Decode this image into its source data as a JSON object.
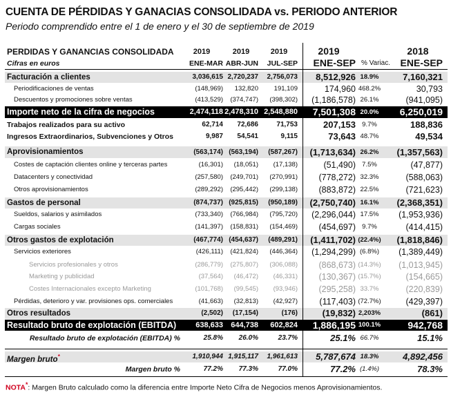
{
  "title": "CUENTA DE PÉRDIDAS Y GANACIAS CONSOLIDADA vs. PERIODO ANTERIOR",
  "subtitle": "Periodo comprendido entre el 1 de enero y el 30 de septiembre de 2019",
  "table_header": {
    "main": "PERDIDAS Y GANANCIAS CONSOLIDADA",
    "sub": "Cifras en euros",
    "col_year": [
      "2019",
      "2019",
      "2019",
      "2019",
      "",
      "2018"
    ],
    "col_period": [
      "ENE-MAR",
      "ABR-JUN",
      "JUL-SEP",
      "ENE-SEP",
      "% Variac.",
      "ENE-SEP"
    ]
  },
  "rows": [
    {
      "label": "Facturación a clientes",
      "v": [
        "3,036,615",
        "2,720,237",
        "2,756,073",
        "8,512,926",
        "18.9%",
        "7,160,321"
      ],
      "style": "shade",
      "bold": true
    },
    {
      "label": "Periodificaciones de ventas",
      "v": [
        "(148,969)",
        "132,820",
        "191,109",
        "174,960",
        "468.2%",
        "30,793"
      ],
      "style": "plain",
      "indent": 1
    },
    {
      "label": "Descuentos y promociones sobre ventas",
      "v": [
        "(413,529)",
        "(374,747)",
        "(398,302)",
        "(1,186,578)",
        "26.1%",
        "(941,095)"
      ],
      "style": "plain",
      "indent": 1
    },
    {
      "label": "Importe neto de la cifra de negocios",
      "v": [
        "2,474,118",
        "2,478,310",
        "2,548,880",
        "7,501,308",
        "20.0%",
        "6,250,019"
      ],
      "style": "dark",
      "bold": true
    },
    {
      "label": "Trabajos realizados para su activo",
      "v": [
        "62,714",
        "72,686",
        "71,753",
        "207,153",
        "9.7%",
        "188,836"
      ],
      "style": "plain",
      "bold": true
    },
    {
      "label": "Ingresos Extraordinarios, Subvenciones y Otros",
      "v": [
        "9,987",
        "54,541",
        "9,115",
        "73,643",
        "48.7%",
        "49,534"
      ],
      "style": "plain",
      "bold": true
    },
    {
      "label": "Aprovisionamientos",
      "v": [
        "(563,174)",
        "(563,194)",
        "(587,267)",
        "(1,713,634)",
        "26.2%",
        "(1,357,563)"
      ],
      "style": "shade",
      "bold": true
    },
    {
      "label": "Costes de captación clientes online y terceras partes",
      "v": [
        "(16,301)",
        "(18,051)",
        "(17,138)",
        "(51,490)",
        "7.5%",
        "(47,877)"
      ],
      "style": "plain",
      "indent": 1
    },
    {
      "label": "Datacenters y conectividad",
      "v": [
        "(257,580)",
        "(249,701)",
        "(270,991)",
        "(778,272)",
        "32.3%",
        "(588,063)"
      ],
      "style": "plain",
      "indent": 1
    },
    {
      "label": "Otros aprovisionamientos",
      "v": [
        "(289,292)",
        "(295,442)",
        "(299,138)",
        "(883,872)",
        "22.5%",
        "(721,623)"
      ],
      "style": "plain",
      "indent": 1
    },
    {
      "label": "Gastos de personal",
      "v": [
        "(874,737)",
        "(925,815)",
        "(950,189)",
        "(2,750,740)",
        "16.1%",
        "(2,368,351)"
      ],
      "style": "shade",
      "bold": true
    },
    {
      "label": "Sueldos, salarios y asimilados",
      "v": [
        "(733,340)",
        "(766,984)",
        "(795,720)",
        "(2,296,044)",
        "17.5%",
        "(1,953,936)"
      ],
      "style": "plain",
      "indent": 1
    },
    {
      "label": "Cargas sociales",
      "v": [
        "(141,397)",
        "(158,831)",
        "(154,469)",
        "(454,697)",
        "9.7%",
        "(414,415)"
      ],
      "style": "plain",
      "indent": 1
    },
    {
      "label": "Otros gastos de explotación",
      "v": [
        "(467,774)",
        "(454,637)",
        "(489,291)",
        "(1,411,702)",
        "(22.4%)",
        "(1,818,846)"
      ],
      "style": "shade",
      "bold": true
    },
    {
      "label": "Servicios exteriores",
      "v": [
        "(426,111)",
        "(421,824)",
        "(446,364)",
        "(1,294,299)",
        "(6.8%)",
        "(1,389,449)"
      ],
      "style": "plain",
      "indent": 1
    },
    {
      "label": "Servicios profesionales y otros",
      "v": [
        "(286,779)",
        "(275,807)",
        "(306,088)",
        "(868,673)",
        "(14.3%)",
        "(1,013,945)"
      ],
      "style": "plain",
      "indent": 2,
      "grey": true
    },
    {
      "label": "Marketing y publicidad",
      "v": [
        "(37,564)",
        "(46,472)",
        "(46,331)",
        "(130,367)",
        "(15.7%)",
        "(154,665)"
      ],
      "style": "plain",
      "indent": 2,
      "grey": true
    },
    {
      "label": "Costes Internacionales excepto Marketing",
      "v": [
        "(101,768)",
        "(99,545)",
        "(93,946)",
        "(295,258)",
        "33.7%",
        "(220,839)"
      ],
      "style": "plain",
      "indent": 2,
      "grey": true
    },
    {
      "label": "Pérdidas, deterioro y var. provisiones ops. comerciales",
      "v": [
        "(41,663)",
        "(32,813)",
        "(42,927)",
        "(117,403)",
        "(72.7%)",
        "(429,397)"
      ],
      "style": "plain",
      "indent": 1
    },
    {
      "label": "Otros resultados",
      "v": [
        "(2,502)",
        "(17,154)",
        "(176)",
        "(19,832)",
        "2,203%",
        "(861)"
      ],
      "style": "shade",
      "bold": true
    },
    {
      "label": "Resultado bruto de explotación (EBITDA)",
      "v": [
        "638,633",
        "644,738",
        "602,824",
        "1,886,195",
        "100.1%",
        "942,768"
      ],
      "style": "dark",
      "bold": true
    },
    {
      "label": "Resultado bruto de explotación (EBITDA) %",
      "v": [
        "25.8%",
        "26.0%",
        "23.7%",
        "25.1%",
        "66.7%",
        "15.1%"
      ],
      "style": "plain",
      "bold": true,
      "italic": true,
      "labelRight": true
    },
    {
      "label": "Margen bruto",
      "star": "*",
      "v": [
        "1,910,944",
        "1,915,117",
        "1,961,613",
        "5,787,674",
        "18.3%",
        "4,892,456"
      ],
      "style": "shade",
      "bold": true,
      "italic": true
    },
    {
      "label": "Margen bruto %",
      "v": [
        "77.2%",
        "77.3%",
        "77.0%",
        "77.2%",
        "(1.4%)",
        "78.3%"
      ],
      "style": "plain",
      "bold": true,
      "italic": true,
      "labelRight": true
    }
  ],
  "note": {
    "label": "NOTA",
    "star": "*",
    "text": ": Margen Bruto calculado como la diferencia entre Importe Neto Cifra de Negocios menos Aprovisionamientos."
  }
}
